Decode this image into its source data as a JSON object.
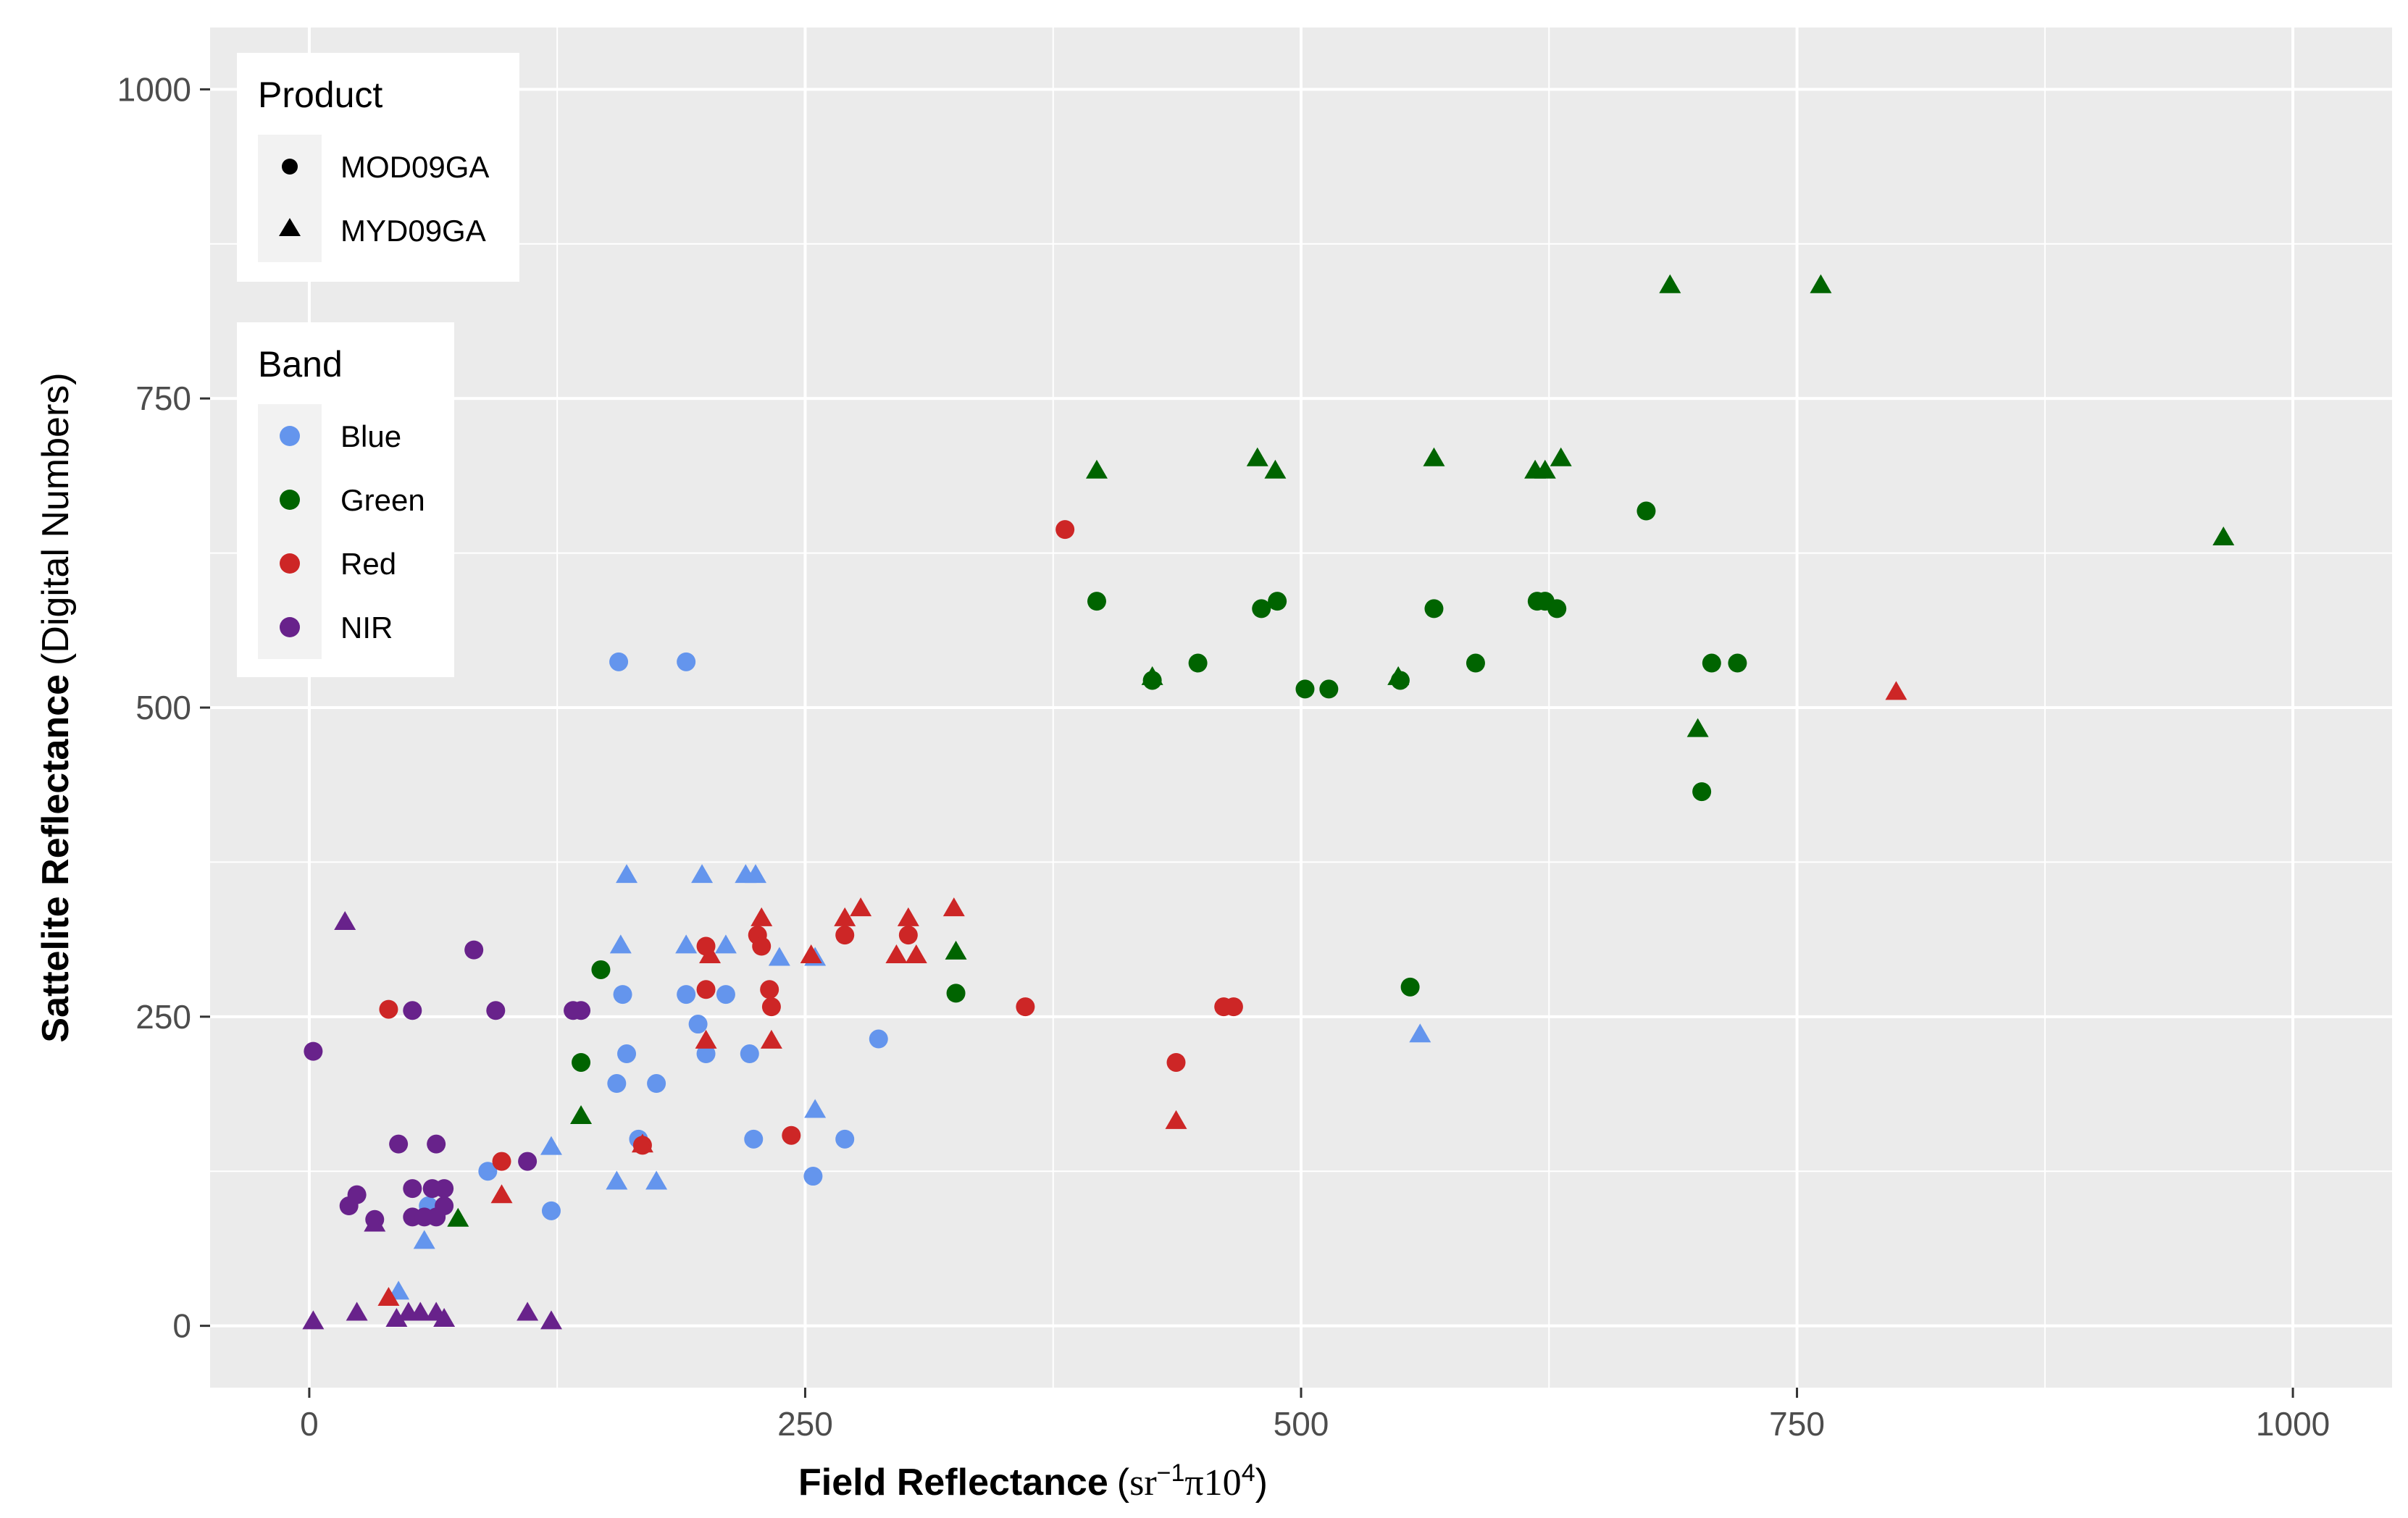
{
  "chart_data": {
    "type": "scatter",
    "xlabel": {
      "main": "Field Reflectance",
      "unit_prefix": "sr",
      "unit_sup1": "−1",
      "unit_mid": "π10",
      "unit_sup2": "4"
    },
    "ylabel": {
      "main": "Sattelite Reflectance",
      "unit": "Digital Numbers"
    },
    "xlim": [
      -50,
      1050
    ],
    "ylim": [
      -50,
      1050
    ],
    "x_ticks": [
      0,
      250,
      500,
      750,
      1000
    ],
    "y_ticks": [
      0,
      250,
      500,
      750,
      1000
    ],
    "x_tick_labels": [
      "0",
      "250",
      "500",
      "750",
      "1000"
    ],
    "y_tick_labels": [
      "0",
      "250",
      "500",
      "750",
      "1000"
    ],
    "grid": true,
    "legends": {
      "product": {
        "title": "Product",
        "items": [
          {
            "label": "MOD09GA",
            "shape": "circle"
          },
          {
            "label": "MYD09GA",
            "shape": "triangle"
          }
        ]
      },
      "band": {
        "title": "Band",
        "items": [
          {
            "label": "Blue",
            "color": "#6495ED"
          },
          {
            "label": "Green",
            "color": "#006400"
          },
          {
            "label": "Red",
            "color": "#CD2626"
          },
          {
            "label": "NIR",
            "color": "#68228B"
          }
        ]
      }
    },
    "legend_position": "top-left",
    "series": [
      {
        "band": "Blue",
        "product": "MOD09GA",
        "points": [
          [
            156,
            537
          ],
          [
            190,
            537
          ],
          [
            190,
            268
          ],
          [
            196,
            244
          ],
          [
            200,
            220
          ],
          [
            210,
            268
          ],
          [
            222,
            220
          ],
          [
            224,
            151
          ],
          [
            158,
            268
          ],
          [
            160,
            220
          ],
          [
            155,
            196
          ],
          [
            166,
            151
          ],
          [
            175,
            196
          ],
          [
            254,
            121
          ],
          [
            90,
            125
          ],
          [
            60,
            97
          ],
          [
            122,
            93
          ],
          [
            270,
            151
          ],
          [
            287,
            232
          ]
        ]
      },
      {
        "band": "Blue",
        "product": "MYD09GA",
        "points": [
          [
            160,
            364
          ],
          [
            198,
            364
          ],
          [
            220,
            364
          ],
          [
            225,
            364
          ],
          [
            157,
            307
          ],
          [
            190,
            307
          ],
          [
            210,
            307
          ],
          [
            237,
            297
          ],
          [
            255,
            297
          ],
          [
            255,
            174
          ],
          [
            122,
            144
          ],
          [
            155,
            116
          ],
          [
            175,
            116
          ],
          [
            45,
            27
          ],
          [
            58,
            68
          ],
          [
            560,
            235
          ]
        ]
      },
      {
        "band": "Green",
        "product": "MOD09GA",
        "points": [
          [
            397,
            586
          ],
          [
            425,
            522
          ],
          [
            448,
            536
          ],
          [
            480,
            580
          ],
          [
            488,
            586
          ],
          [
            502,
            515
          ],
          [
            514,
            515
          ],
          [
            550,
            522
          ],
          [
            567,
            580
          ],
          [
            588,
            536
          ],
          [
            619,
            586
          ],
          [
            623,
            586
          ],
          [
            629,
            580
          ],
          [
            674,
            659
          ],
          [
            702,
            432
          ],
          [
            707,
            536
          ],
          [
            720,
            536
          ],
          [
            555,
            274
          ],
          [
            326,
            269
          ],
          [
            147,
            288
          ],
          [
            137,
            213
          ]
        ]
      },
      {
        "band": "Green",
        "product": "MYD09GA",
        "points": [
          [
            397,
            691
          ],
          [
            425,
            524
          ],
          [
            478,
            701
          ],
          [
            487,
            691
          ],
          [
            549,
            524
          ],
          [
            567,
            701
          ],
          [
            618,
            691
          ],
          [
            623,
            691
          ],
          [
            631,
            701
          ],
          [
            686,
            841
          ],
          [
            762,
            841
          ],
          [
            700,
            482
          ],
          [
            965,
            637
          ],
          [
            326,
            302
          ],
          [
            137,
            169
          ],
          [
            75,
            86
          ]
        ]
      },
      {
        "band": "Red",
        "product": "MOD09GA",
        "points": [
          [
            381,
            644
          ],
          [
            40,
            256
          ],
          [
            200,
            307
          ],
          [
            226,
            316
          ],
          [
            228,
            307
          ],
          [
            232,
            272
          ],
          [
            233,
            258
          ],
          [
            270,
            316
          ],
          [
            302,
            316
          ],
          [
            361,
            258
          ],
          [
            200,
            272
          ],
          [
            243,
            154
          ],
          [
            168,
            146
          ],
          [
            97,
            133
          ],
          [
            437,
            213
          ],
          [
            461,
            258
          ],
          [
            466,
            258
          ]
        ]
      },
      {
        "band": "Red",
        "product": "MYD09GA",
        "points": [
          [
            228,
            329
          ],
          [
            278,
            337
          ],
          [
            270,
            329
          ],
          [
            302,
            329
          ],
          [
            325,
            337
          ],
          [
            202,
            299
          ],
          [
            253,
            299
          ],
          [
            296,
            299
          ],
          [
            306,
            299
          ],
          [
            200,
            230
          ],
          [
            233,
            230
          ],
          [
            168,
            146
          ],
          [
            97,
            105
          ],
          [
            437,
            165
          ],
          [
            800,
            512
          ],
          [
            40,
            22
          ]
        ]
      },
      {
        "band": "NIR",
        "product": "MOD09GA",
        "points": [
          [
            2,
            222
          ],
          [
            52,
            255
          ],
          [
            83,
            304
          ],
          [
            94,
            255
          ],
          [
            133,
            255
          ],
          [
            137,
            255
          ],
          [
            45,
            147
          ],
          [
            64,
            147
          ],
          [
            20,
            97
          ],
          [
            24,
            106
          ],
          [
            33,
            86
          ],
          [
            52,
            111
          ],
          [
            62,
            111
          ],
          [
            68,
            111
          ],
          [
            52,
            88
          ],
          [
            58,
            88
          ],
          [
            64,
            88
          ],
          [
            68,
            97
          ],
          [
            110,
            133
          ]
        ]
      },
      {
        "band": "NIR",
        "product": "MYD09GA",
        "points": [
          [
            18,
            326
          ],
          [
            33,
            82
          ],
          [
            2,
            3
          ],
          [
            24,
            10
          ],
          [
            44,
            5
          ],
          [
            50,
            10
          ],
          [
            56,
            10
          ],
          [
            64,
            10
          ],
          [
            68,
            5
          ],
          [
            110,
            10
          ],
          [
            122,
            3
          ]
        ]
      }
    ]
  }
}
